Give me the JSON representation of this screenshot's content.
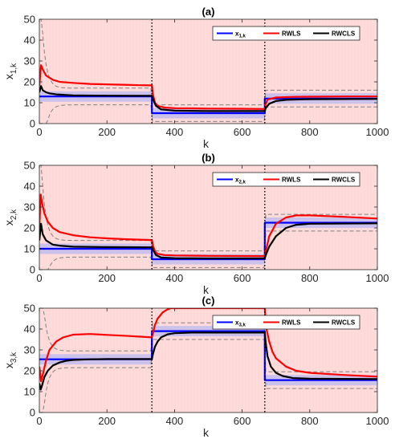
{
  "chart_data": [
    {
      "type": "line",
      "title": "(a)",
      "xlabel": "k",
      "ylabel": "x",
      "ylabel_sub": "1,k",
      "xlim": [
        0,
        1000
      ],
      "ylim": [
        0,
        50
      ],
      "xticks": [
        0,
        200,
        400,
        600,
        800,
        1000
      ],
      "yticks": [
        0,
        10,
        20,
        30,
        40,
        50
      ],
      "change_points": [
        333,
        667
      ],
      "legend": {
        "placement": "top-right",
        "entries": [
          {
            "label": "x",
            "sub": "1,k",
            "color": "#0000ff"
          },
          {
            "label": "RWLS",
            "color": "#ff0000"
          },
          {
            "label": "RWCLS",
            "color": "#000000"
          }
        ]
      },
      "series": [
        {
          "name": "x_{1,k}",
          "color": "#0000ff",
          "x": [
            0,
            333,
            333,
            667,
            667,
            1000
          ],
          "y": [
            13,
            13,
            5,
            5,
            12,
            12
          ]
        },
        {
          "name": "RWLS",
          "color": "#ff0000",
          "x": [
            0,
            5,
            10,
            20,
            40,
            60,
            100,
            150,
            200,
            250,
            300,
            333,
            336,
            342,
            350,
            370,
            400,
            450,
            500,
            600,
            667,
            669,
            675,
            700,
            750,
            800,
            900,
            1000
          ],
          "y": [
            18,
            28,
            26,
            23,
            21,
            20,
            19.5,
            19,
            18.8,
            18.6,
            18.4,
            18.3,
            14,
            10,
            8.5,
            7.7,
            7.4,
            7.3,
            7.2,
            7.1,
            7.0,
            9,
            11.5,
            12.5,
            12.8,
            12.9,
            13.0,
            13.0
          ]
        },
        {
          "name": "RWCLS",
          "color": "#000000",
          "x": [
            0,
            5,
            10,
            20,
            30,
            50,
            100,
            200,
            333,
            338,
            345,
            360,
            400,
            500,
            667,
            670,
            680,
            700,
            730,
            800,
            1000
          ],
          "y": [
            15,
            18,
            16,
            15,
            14.5,
            14,
            13.5,
            13.4,
            13.3,
            11,
            8.5,
            6.8,
            6.2,
            6.0,
            6.0,
            7.5,
            9.5,
            10.8,
            11.4,
            11.7,
            11.8
          ]
        }
      ]
    },
    {
      "type": "line",
      "title": "(b)",
      "xlabel": "k",
      "ylabel": "x",
      "ylabel_sub": "2,k",
      "xlim": [
        0,
        1000
      ],
      "ylim": [
        0,
        50
      ],
      "xticks": [
        0,
        200,
        400,
        600,
        800,
        1000
      ],
      "yticks": [
        0,
        10,
        20,
        30,
        40,
        50
      ],
      "change_points": [
        333,
        667
      ],
      "legend": {
        "placement": "top-right",
        "entries": [
          {
            "label": "x",
            "sub": "2,k",
            "color": "#0000ff"
          },
          {
            "label": "RWLS",
            "color": "#ff0000"
          },
          {
            "label": "RWCLS",
            "color": "#000000"
          }
        ]
      },
      "series": [
        {
          "name": "x_{2,k}",
          "color": "#0000ff",
          "x": [
            0,
            333,
            333,
            667,
            667,
            1000
          ],
          "y": [
            10,
            10,
            5,
            5,
            22.5,
            22.5
          ]
        },
        {
          "name": "RWLS",
          "color": "#ff0000",
          "x": [
            0,
            4,
            8,
            15,
            25,
            40,
            60,
            100,
            150,
            200,
            250,
            333,
            337,
            343,
            350,
            370,
            400,
            500,
            667,
            670,
            680,
            700,
            730,
            760,
            800,
            900,
            1000
          ],
          "y": [
            20,
            36,
            32,
            27,
            23,
            20,
            18,
            16.5,
            15.5,
            15,
            14.6,
            14.2,
            11,
            8.5,
            7.6,
            7.0,
            6.8,
            6.6,
            6.5,
            9,
            16,
            22,
            25,
            26,
            26,
            25.3,
            24.5
          ]
        },
        {
          "name": "RWCLS",
          "color": "#000000",
          "x": [
            0,
            5,
            10,
            20,
            40,
            60,
            100,
            200,
            333,
            338,
            345,
            360,
            400,
            500,
            667,
            670,
            680,
            700,
            730,
            760,
            800,
            1000
          ],
          "y": [
            14,
            22,
            17,
            14,
            12,
            11.5,
            11,
            10.8,
            10.7,
            9,
            7,
            5.8,
            5.5,
            5.4,
            5.4,
            7,
            11,
            16,
            20,
            21.5,
            22,
            22.2
          ]
        }
      ]
    },
    {
      "type": "line",
      "title": "(c)",
      "xlabel": "k",
      "ylabel": "x",
      "ylabel_sub": "3,k",
      "xlim": [
        0,
        1000
      ],
      "ylim": [
        0,
        50
      ],
      "xticks": [
        0,
        200,
        400,
        600,
        800,
        1000
      ],
      "yticks": [
        0,
        10,
        20,
        30,
        40,
        50
      ],
      "change_points": [
        333,
        667
      ],
      "legend": {
        "placement": "top-right",
        "entries": [
          {
            "label": "x",
            "sub": "3,k",
            "color": "#0000ff"
          },
          {
            "label": "RWLS",
            "color": "#ff0000"
          },
          {
            "label": "RWCLS",
            "color": "#000000"
          }
        ]
      },
      "series": [
        {
          "name": "x_{3,k}",
          "color": "#0000ff",
          "x": [
            0,
            333,
            333,
            667,
            667,
            1000
          ],
          "y": [
            25.5,
            25.5,
            39,
            39,
            15.5,
            15.5
          ]
        },
        {
          "name": "RWLS",
          "color": "#ff0000",
          "x": [
            0,
            5,
            10,
            20,
            30,
            50,
            70,
            100,
            150,
            200,
            250,
            333,
            336,
            342,
            350,
            365,
            380,
            390,
            400,
            667,
            669,
            672,
            680,
            690,
            700,
            730,
            760,
            800,
            900,
            1000
          ],
          "y": [
            22,
            15,
            18,
            25,
            30,
            34,
            36,
            37.3,
            37.6,
            37.2,
            36.8,
            36,
            38,
            42,
            45,
            48,
            49.5,
            50,
            50,
            50,
            45,
            40,
            34,
            29,
            26,
            22,
            20,
            19,
            18,
            17.2
          ]
        },
        {
          "name": "RWCLS",
          "color": "#000000",
          "x": [
            0,
            4,
            8,
            15,
            25,
            40,
            60,
            80,
            100,
            150,
            200,
            333,
            336,
            342,
            350,
            360,
            380,
            400,
            450,
            667,
            670,
            675,
            685,
            700,
            720,
            750,
            800,
            1000
          ],
          "y": [
            14,
            11,
            13,
            17,
            20,
            22.5,
            24,
            24.8,
            25.2,
            25.5,
            25.6,
            25.6,
            28,
            31.5,
            34,
            36,
            37.5,
            38,
            38.3,
            38.3,
            33,
            27,
            22,
            19,
            17.5,
            16.5,
            16.2,
            16.0
          ]
        }
      ]
    }
  ]
}
